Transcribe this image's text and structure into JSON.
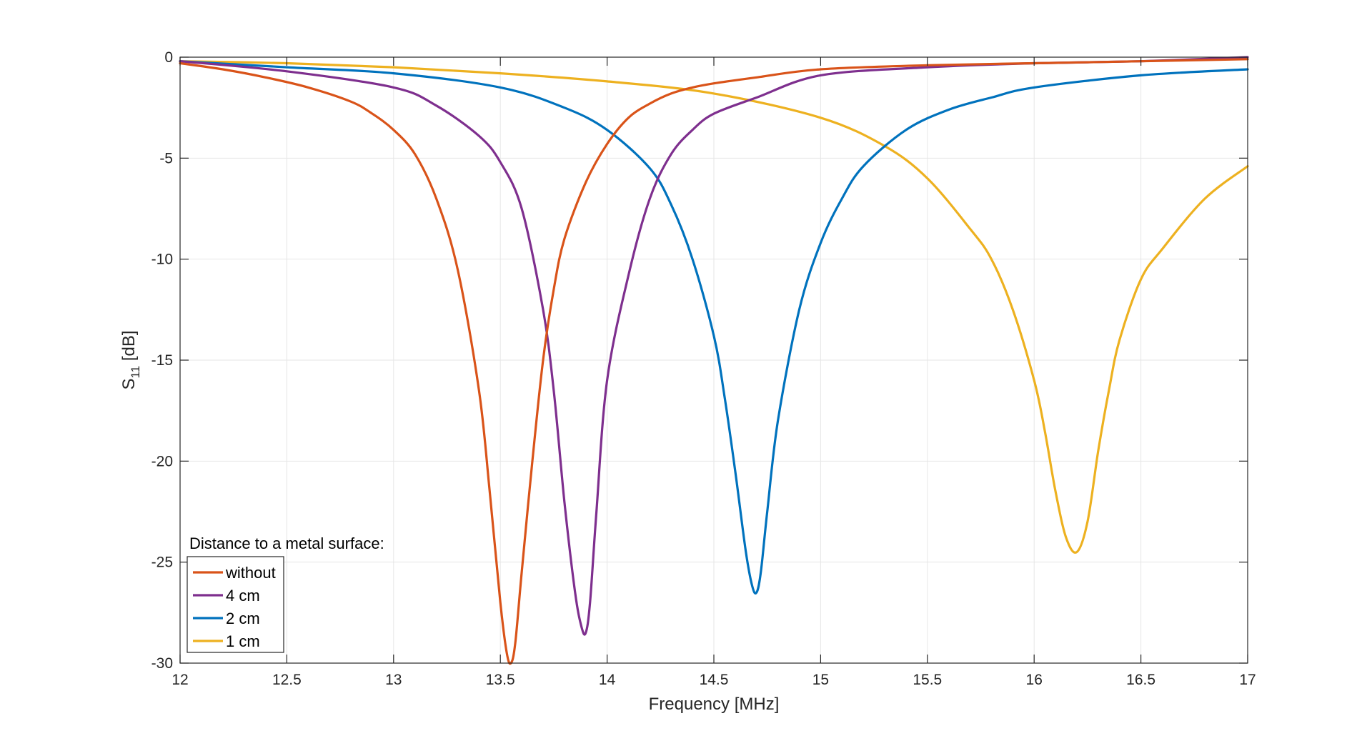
{
  "chart_data": {
    "type": "line",
    "title": "",
    "xlabel": "Frequency [MHz]",
    "ylabel": {
      "main": "S",
      "sub": "11",
      "unit": " [dB]"
    },
    "xlim": [
      12,
      17
    ],
    "ylim": [
      -30,
      0
    ],
    "xticks": [
      12,
      12.5,
      13,
      13.5,
      14,
      14.5,
      15,
      15.5,
      16,
      16.5,
      17
    ],
    "xtick_labels": [
      "12",
      "12.5",
      "13",
      "13.5",
      "14",
      "14.5",
      "15",
      "15.5",
      "16",
      "16.5",
      "17"
    ],
    "yticks": [
      0,
      -5,
      -10,
      -15,
      -20,
      -25,
      -30
    ],
    "ytick_labels": [
      "0",
      "-5",
      "-10",
      "-15",
      "-20",
      "-25",
      "-30"
    ],
    "grid": true,
    "legend": {
      "title": "Distance to a metal surface:",
      "placement": "bottom-left",
      "entries": [
        "without",
        "4 cm",
        "2 cm",
        "1 cm"
      ]
    },
    "series": [
      {
        "name": "without",
        "color": "#D95319",
        "x": [
          12.0,
          12.2,
          12.4,
          12.6,
          12.8,
          12.9,
          13.0,
          13.1,
          13.2,
          13.3,
          13.4,
          13.45,
          13.5,
          13.53,
          13.55,
          13.57,
          13.6,
          13.65,
          13.7,
          13.75,
          13.8,
          13.9,
          14.0,
          14.1,
          14.2,
          14.3,
          14.4,
          14.5,
          14.7,
          15.0,
          15.5,
          16.0,
          16.5,
          17.0
        ],
        "y": [
          -0.3,
          -0.6,
          -1.0,
          -1.5,
          -2.2,
          -2.8,
          -3.6,
          -4.8,
          -7.0,
          -10.5,
          -16.5,
          -21.5,
          -27.0,
          -29.5,
          -30.0,
          -29.0,
          -25.5,
          -20.0,
          -15.0,
          -11.5,
          -9.0,
          -6.2,
          -4.3,
          -3.0,
          -2.3,
          -1.8,
          -1.5,
          -1.3,
          -1.0,
          -0.6,
          -0.4,
          -0.3,
          -0.2,
          -0.1
        ]
      },
      {
        "name": "4 cm",
        "color": "#7E2F8E",
        "x": [
          12.0,
          12.5,
          13.0,
          13.2,
          13.4,
          13.5,
          13.6,
          13.7,
          13.75,
          13.8,
          13.85,
          13.88,
          13.9,
          13.92,
          13.95,
          14.0,
          14.1,
          14.2,
          14.3,
          14.4,
          14.5,
          14.7,
          15.0,
          15.5,
          16.0,
          16.5,
          17.0
        ],
        "y": [
          -0.2,
          -0.7,
          -1.5,
          -2.4,
          -3.9,
          -5.2,
          -7.5,
          -12.5,
          -16.5,
          -22.0,
          -26.5,
          -28.2,
          -28.5,
          -27.0,
          -22.5,
          -16.0,
          -10.8,
          -7.0,
          -4.8,
          -3.6,
          -2.8,
          -2.0,
          -0.9,
          -0.5,
          -0.3,
          -0.2,
          0.0
        ]
      },
      {
        "name": "2 cm",
        "color": "#0072BD",
        "x": [
          12.0,
          12.5,
          13.0,
          13.5,
          13.8,
          14.0,
          14.2,
          14.3,
          14.4,
          14.5,
          14.55,
          14.6,
          14.65,
          14.68,
          14.7,
          14.72,
          14.75,
          14.8,
          14.9,
          15.0,
          15.1,
          15.2,
          15.4,
          15.6,
          15.8,
          16.0,
          16.5,
          17.0
        ],
        "y": [
          -0.2,
          -0.5,
          -0.8,
          -1.5,
          -2.5,
          -3.6,
          -5.5,
          -7.3,
          -10.0,
          -13.8,
          -16.8,
          -20.5,
          -24.5,
          -26.2,
          -26.5,
          -25.5,
          -22.5,
          -18.0,
          -12.5,
          -9.2,
          -7.0,
          -5.4,
          -3.6,
          -2.6,
          -2.0,
          -1.5,
          -0.9,
          -0.6
        ]
      },
      {
        "name": "1 cm",
        "color": "#EDB120",
        "x": [
          12.0,
          12.5,
          13.0,
          13.5,
          14.0,
          14.5,
          15.0,
          15.3,
          15.5,
          15.7,
          15.8,
          15.9,
          16.0,
          16.05,
          16.1,
          16.15,
          16.2,
          16.25,
          16.3,
          16.35,
          16.4,
          16.5,
          16.6,
          16.8,
          17.0
        ],
        "y": [
          -0.2,
          -0.3,
          -0.5,
          -0.8,
          -1.2,
          -1.8,
          -3.0,
          -4.4,
          -6.0,
          -8.5,
          -10.0,
          -12.5,
          -16.0,
          -18.5,
          -21.5,
          -23.8,
          -24.5,
          -23.0,
          -19.5,
          -16.5,
          -14.0,
          -11.0,
          -9.5,
          -7.0,
          -5.4
        ]
      }
    ]
  }
}
